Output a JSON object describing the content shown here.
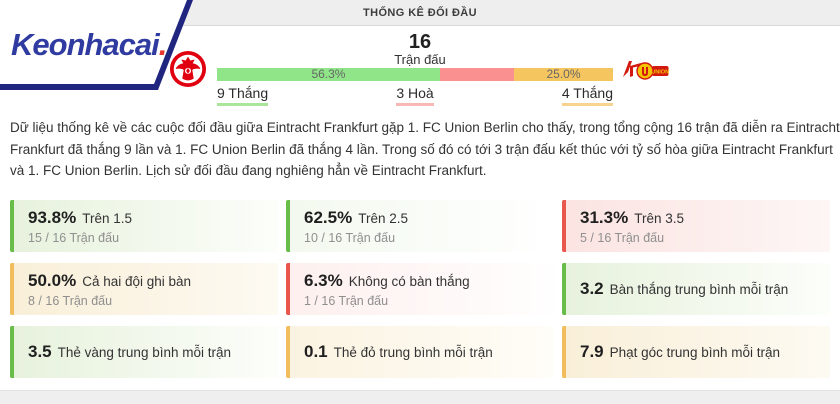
{
  "brand": {
    "name": "Keonhacai",
    "dot": ".",
    "colors": {
      "logo_blue": "#2f3ba0",
      "dot_red": "#e8352b",
      "border_navy": "#20267f"
    }
  },
  "header": {
    "title": "THỐNG KÊ ĐỐI ĐẦU"
  },
  "head_to_head": {
    "total_matches": "16",
    "total_matches_label": "Trận đấu",
    "teams": {
      "home": "Eintracht Frankfurt",
      "away": "1. FC Union Berlin"
    },
    "bar": {
      "segments": [
        {
          "name": "home-wins",
          "pct": 56.3,
          "label": "56.3%",
          "color": "#90e589"
        },
        {
          "name": "draws",
          "pct": 18.7,
          "label": "",
          "color": "#fa9090"
        },
        {
          "name": "away-wins",
          "pct": 25.0,
          "label": "25.0%",
          "color": "#f5c65f"
        }
      ]
    },
    "legend": {
      "home_wins": "9 Thắng",
      "draws": "3 Hoà",
      "away_wins": "4 Thắng"
    }
  },
  "summary_paragraph": "Dữ liệu thống kê về các cuộc đối đầu giữa Eintracht Frankfurt gặp 1. FC Union Berlin cho thấy, trong tổng cộng 16 trận đã diễn ra Eintracht Frankfurt đã thắng 9 lần và 1. FC Union Berlin đã thắng 4 lần. Trong số đó có tới 3 trận đấu kết thúc với tỷ số hòa giữa Eintracht Frankfurt và 1. FC Union Berlin. Lịch sử đối đầu đang nghiêng hẳn về Eintracht Frankfurt.",
  "stats_cards": [
    {
      "value": "93.8%",
      "label": "Trên 1.5",
      "sub": "15 / 16 Trận đấu",
      "accent": "green"
    },
    {
      "value": "62.5%",
      "label": "Trên 2.5",
      "sub": "10 / 16 Trận đấu",
      "accent": "green-light"
    },
    {
      "value": "31.3%",
      "label": "Trên 3.5",
      "sub": "5 / 16 Trận đấu",
      "accent": "red"
    },
    {
      "value": "50.0%",
      "label": "Cả hai đội ghi bàn",
      "sub": "8 / 16 Trận đấu",
      "accent": "orange"
    },
    {
      "value": "6.3%",
      "label": "Không có bàn thắng",
      "sub": "1 / 16 Trận đấu",
      "accent": "red-light"
    },
    {
      "value": "3.2",
      "label": "Bàn thắng trung bình mỗi trận",
      "sub": "",
      "accent": "green"
    },
    {
      "value": "3.5",
      "label": "Thẻ vàng trung bình mỗi trận",
      "sub": "",
      "accent": "green"
    },
    {
      "value": "0.1",
      "label": "Thẻ đỏ trung bình mỗi trận",
      "sub": "",
      "accent": "orange-light"
    },
    {
      "value": "7.9",
      "label": "Phạt góc trung bình mỗi trận",
      "sub": "",
      "accent": "orange"
    }
  ]
}
